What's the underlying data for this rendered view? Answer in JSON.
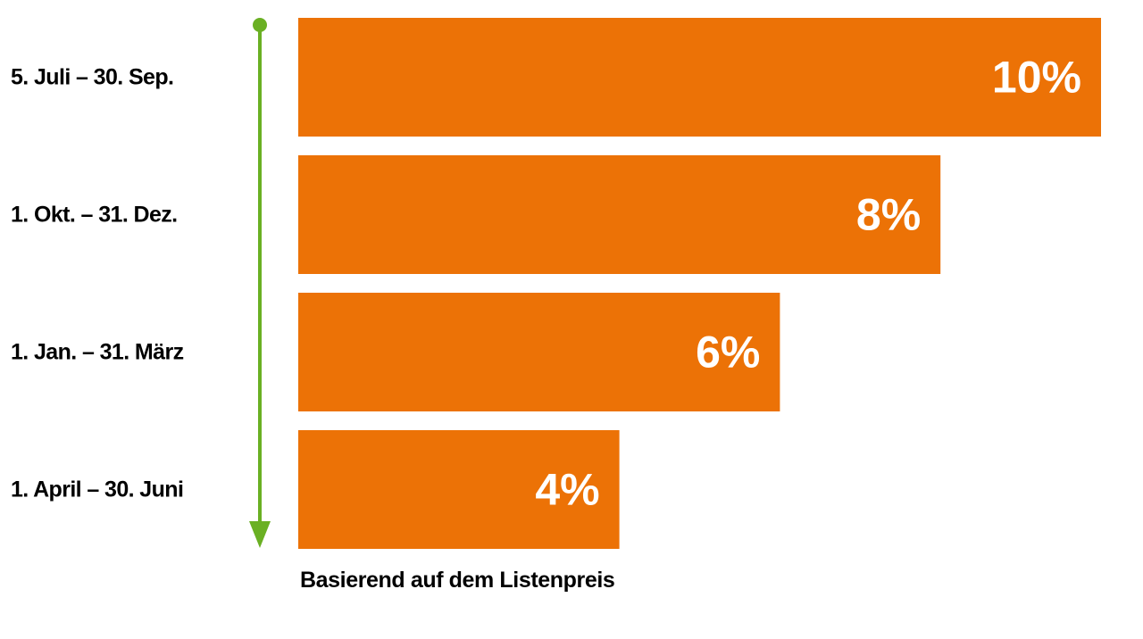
{
  "chart_data": {
    "type": "bar",
    "orientation": "horizontal",
    "categories": [
      "5. Juli – 30. Sep.",
      "1. Okt. – 31. Dez.",
      "1. Jan. – 31. März",
      "1. April – 30. Juni"
    ],
    "values": [
      10,
      8,
      6,
      4
    ],
    "value_labels": [
      "10%",
      "8%",
      "6%",
      "4%"
    ],
    "unit": "%",
    "xlim": [
      0,
      10
    ],
    "footnote": "Basierend auf dem Listenpreis",
    "grid": false,
    "legend": "none"
  },
  "colors": {
    "bar": "#EC7206",
    "arrow": "#6AB023",
    "category_text": "#000000",
    "value_text": "#FFFFFF"
  }
}
